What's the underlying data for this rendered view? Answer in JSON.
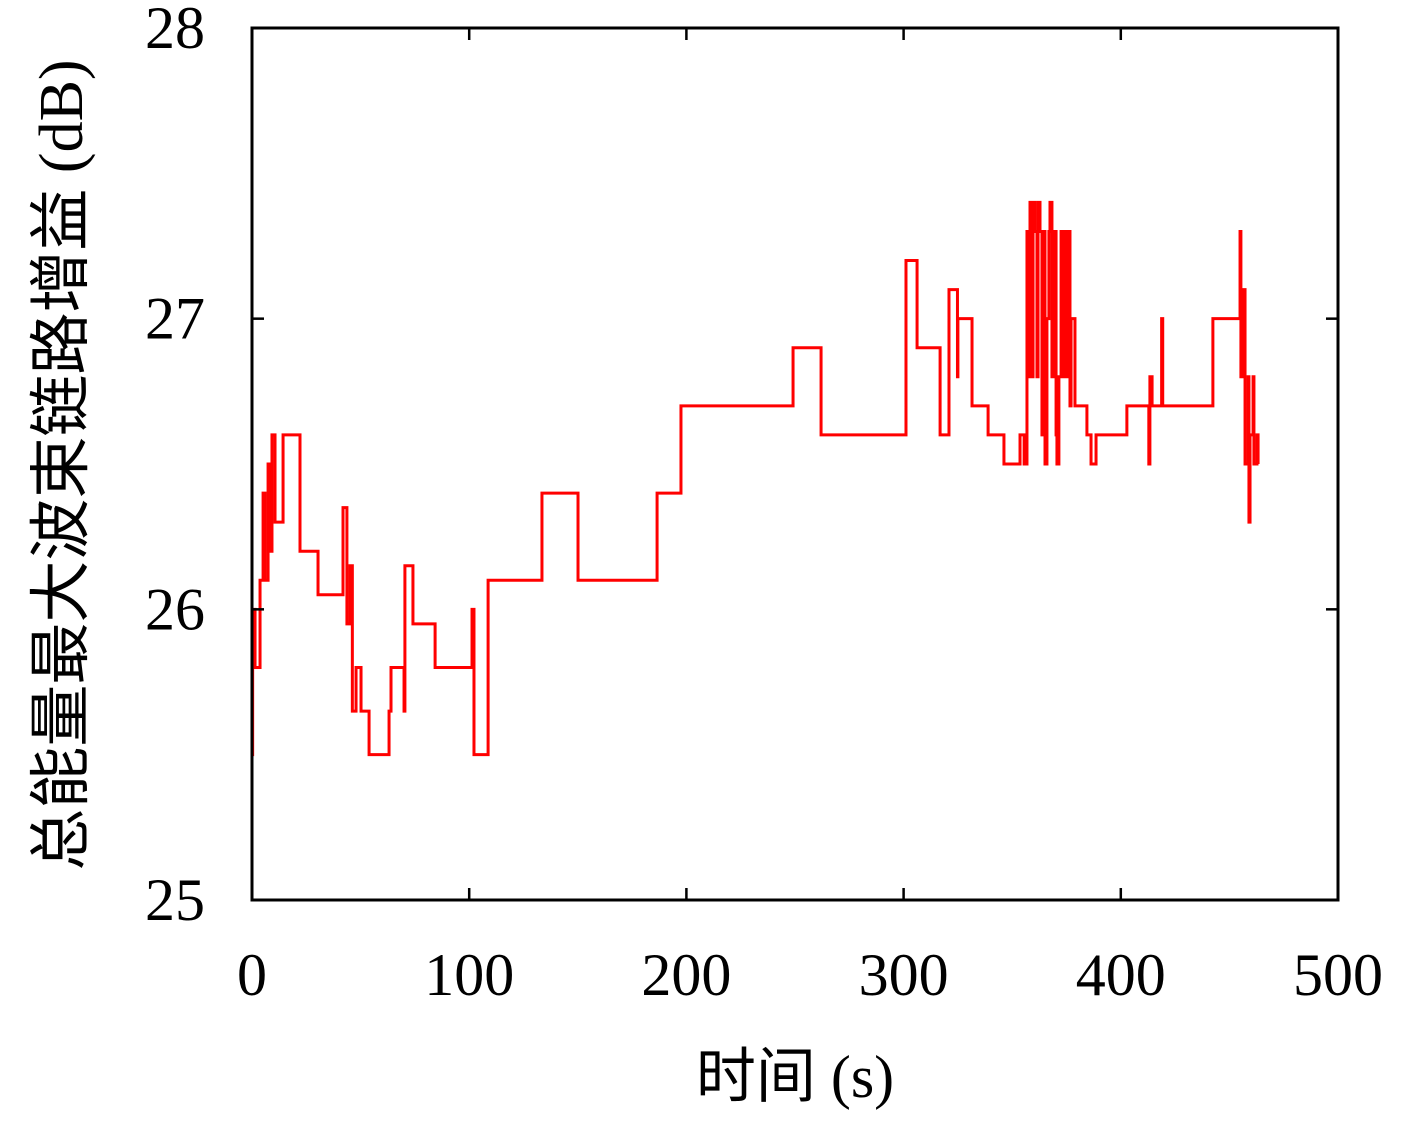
{
  "chart_data": {
    "type": "line",
    "step": true,
    "xlabel": "时间 (s)",
    "ylabel": "总能量最大波束链路增益 (dB)",
    "xlim": [
      0,
      500
    ],
    "ylim": [
      25,
      28
    ],
    "xticks": [
      0,
      100,
      200,
      300,
      400,
      500
    ],
    "yticks": [
      25,
      26,
      27,
      28
    ],
    "grid": false,
    "legend": false,
    "series": [
      {
        "color": "#ff0000",
        "x": [
          0,
          0.3,
          1.4,
          3.7,
          5.1,
          6.0,
          7.4,
          8.3,
          9.2,
          10.6,
          14.3,
          22.1,
          30.4,
          41.9,
          43.7,
          45.1,
          46.2,
          47.9,
          50.2,
          53.9,
          63.1,
          64.0,
          70.0,
          70.4,
          74.1,
          84.3,
          101.3,
          102.2,
          108.7,
          133.5,
          150.1,
          186.5,
          197.5,
          249.1,
          262.0,
          301.1,
          306.2,
          316.8,
          320.9,
          324.8,
          325.0,
          331.5,
          338.9,
          346.2,
          353.6,
          355.5,
          356.8,
          357.7,
          358.2,
          359.1,
          359.6,
          360.5,
          361.4,
          361.9,
          362.8,
          363.7,
          364.2,
          365.1,
          366.0,
          366.9,
          367.4,
          368.3,
          369.2,
          370.2,
          370.6,
          371.5,
          372.5,
          373.4,
          374.3,
          375.2,
          375.7,
          376.6,
          377.1,
          378.9,
          384.4,
          386.3,
          388.6,
          402.8,
          412.9,
          413.4,
          414.4,
          418.8,
          419.3,
          442.4,
          454.9,
          455.3,
          456.2,
          457.2,
          458.6,
          459.0,
          459.5,
          460.9,
          461.3,
          462.7,
          463.2
        ],
        "y": [
          25.5,
          26.0,
          25.8,
          26.1,
          26.4,
          26.1,
          26.5,
          26.2,
          26.6,
          26.3,
          26.6,
          26.2,
          26.05,
          26.35,
          25.95,
          26.15,
          25.65,
          25.8,
          25.65,
          25.5,
          25.65,
          25.8,
          25.65,
          26.15,
          25.95,
          25.8,
          26.0,
          25.5,
          26.1,
          26.4,
          26.1,
          26.4,
          26.7,
          26.9,
          26.6,
          27.2,
          26.9,
          26.6,
          27.1,
          26.8,
          27.0,
          26.7,
          26.6,
          26.5,
          26.6,
          26.5,
          27.3,
          26.8,
          27.4,
          26.8,
          27.4,
          27.3,
          26.8,
          27.4,
          27.3,
          26.6,
          27.3,
          26.5,
          27.0,
          27.3,
          27.4,
          26.8,
          27.3,
          26.6,
          26.5,
          26.8,
          27.3,
          26.8,
          27.3,
          26.8,
          27.3,
          26.7,
          27.0,
          26.7,
          26.6,
          26.5,
          26.6,
          26.7,
          26.5,
          26.8,
          26.7,
          27.0,
          26.7,
          27.0,
          27.3,
          26.8,
          27.1,
          26.5,
          26.8,
          26.3,
          26.6,
          26.8,
          26.5,
          26.6,
          26.5
        ]
      }
    ]
  }
}
